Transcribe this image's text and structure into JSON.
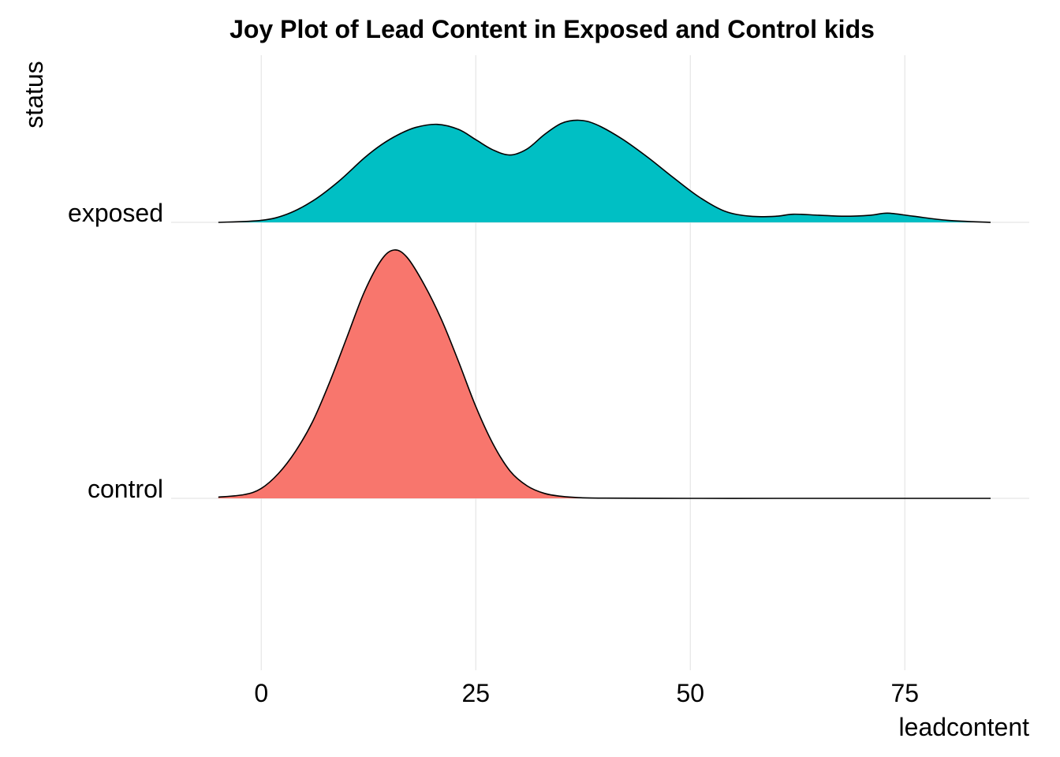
{
  "chart_data": {
    "type": "ridgeline",
    "title": "Joy Plot of Lead Content in Exposed and Control kids",
    "xlabel": "leadcontent",
    "ylabel": "status",
    "xlim": [
      -10.5,
      89.5
    ],
    "x_ticks": [
      0,
      25,
      50,
      75
    ],
    "categories": [
      "control",
      "exposed"
    ],
    "grid": true,
    "legend": "none",
    "series": [
      {
        "name": "control",
        "color": "#F8766D",
        "peak_height": 0.9,
        "x": [
          -5,
          -2,
          0,
          2,
          4,
          6,
          8,
          10,
          12,
          14,
          15.5,
          17,
          19,
          21,
          23,
          25,
          27,
          29,
          31,
          33,
          35,
          37,
          40,
          50,
          60,
          70,
          80,
          85
        ],
        "density": [
          0.005,
          0.015,
          0.04,
          0.1,
          0.19,
          0.31,
          0.47,
          0.65,
          0.83,
          0.96,
          1.0,
          0.97,
          0.86,
          0.72,
          0.55,
          0.37,
          0.22,
          0.11,
          0.05,
          0.02,
          0.008,
          0.003,
          0.001,
          0,
          0,
          0,
          0,
          0
        ]
      },
      {
        "name": "exposed",
        "color": "#00BFC4",
        "peak_height": 0.37,
        "x": [
          -5,
          0,
          3,
          6,
          9,
          12,
          14,
          16,
          18,
          20.5,
          23,
          25,
          27,
          29,
          31,
          33,
          35,
          37,
          39,
          42,
          45,
          48,
          51,
          54,
          57,
          60,
          62,
          65,
          68,
          71,
          73,
          76,
          80,
          85
        ],
        "density": [
          0.0,
          0.02,
          0.08,
          0.21,
          0.4,
          0.63,
          0.76,
          0.86,
          0.93,
          0.96,
          0.91,
          0.81,
          0.71,
          0.66,
          0.72,
          0.86,
          0.97,
          1.0,
          0.96,
          0.82,
          0.64,
          0.44,
          0.25,
          0.11,
          0.06,
          0.06,
          0.08,
          0.07,
          0.06,
          0.07,
          0.09,
          0.06,
          0.02,
          0.0
        ]
      }
    ]
  }
}
